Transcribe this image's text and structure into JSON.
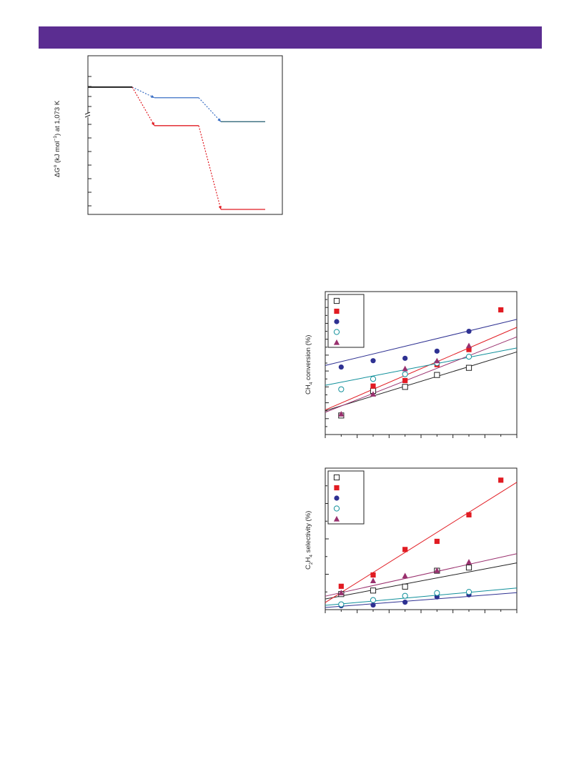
{
  "colors": {
    "header": "#5b2d91",
    "black": "#222222",
    "red": "#e11b22",
    "navy": "#2e3192",
    "blue": "#3a6fc4",
    "teal": "#0f8f9a",
    "plum": "#99306e",
    "dark_teal": "#1e5a6e"
  },
  "chart_data": [
    {
      "type": "line",
      "subtype": "energy-level diagram",
      "ylabel_parts": {
        "delta": "Δ",
        "g": "G",
        "deg": "o",
        "kj": " (kJ mol",
        "exp": "−1",
        "rest": ") at 1,073 K"
      },
      "ylim": [
        0,
        100
      ],
      "axis_break": true,
      "levels": [
        {
          "name": "start",
          "color": "black",
          "x": [
            0,
            2
          ],
          "y": 92
        },
        {
          "name": "upper-intermediate",
          "color": "blue",
          "x": [
            3,
            5
          ],
          "y": 84
        },
        {
          "name": "upper-final",
          "color": "dark_teal",
          "x": [
            6,
            8
          ],
          "y": 66
        },
        {
          "name": "lower-intermediate",
          "color": "red",
          "x": [
            3,
            5
          ],
          "y": 63
        },
        {
          "name": "lower-final",
          "color": "red",
          "x": [
            6,
            8
          ],
          "y": 0
        }
      ],
      "transitions": [
        {
          "from": "start",
          "to": "upper-intermediate",
          "color": "blue"
        },
        {
          "from": "upper-intermediate",
          "to": "upper-final",
          "color": "blue"
        },
        {
          "from": "start",
          "to": "lower-intermediate",
          "color": "red"
        },
        {
          "from": "lower-intermediate",
          "to": "lower-final",
          "color": "red"
        }
      ]
    },
    {
      "type": "scatter",
      "ylabel_parts": {
        "pre": "CH",
        "sub": "4",
        "post": " conversion (%)"
      },
      "xlim": [
        0,
        12
      ],
      "ylim": [
        0,
        18
      ],
      "x": [
        1,
        3,
        5,
        7,
        9,
        11
      ],
      "legend": "top-left",
      "series": [
        {
          "marker": "square-open",
          "color": "black",
          "values": [
            2.4,
            5.5,
            6.0,
            7.5,
            8.4,
            null
          ],
          "fit": [
            3.0,
            10.4
          ]
        },
        {
          "marker": "square-filled",
          "color": "red",
          "values": [
            null,
            6.1,
            6.8,
            8.8,
            10.7,
            15.7
          ],
          "fit": [
            3.1,
            13.5
          ]
        },
        {
          "marker": "circle-filled",
          "color": "navy",
          "values": [
            8.5,
            9.3,
            9.6,
            10.5,
            13.0,
            null
          ],
          "fit": [
            8.7,
            14.5
          ]
        },
        {
          "marker": "circle-open",
          "color": "teal",
          "values": [
            5.7,
            7.0,
            7.6,
            9.0,
            9.8,
            null
          ],
          "fit": [
            6.2,
            10.9
          ]
        },
        {
          "marker": "triangle-filled",
          "color": "plum",
          "values": [
            2.6,
            5.1,
            8.3,
            9.3,
            11.2,
            null
          ],
          "fit": [
            2.8,
            12.3
          ]
        }
      ]
    },
    {
      "type": "scatter",
      "ylabel_parts": {
        "pre": "C",
        "sub1": "2",
        "mid": "H",
        "sub2": "4",
        "post": " selectivity (%)"
      },
      "xlim": [
        0,
        12
      ],
      "ylim": [
        0,
        40
      ],
      "x": [
        1,
        3,
        5,
        7,
        9,
        11
      ],
      "legend": "top-left",
      "series": [
        {
          "marker": "square-open",
          "color": "black",
          "values": [
            4.4,
            5.4,
            6.5,
            11.0,
            11.9,
            null
          ],
          "fit": [
            3.0,
            13.2
          ]
        },
        {
          "marker": "square-filled",
          "color": "red",
          "values": [
            6.6,
            9.8,
            17.0,
            19.3,
            26.8,
            36.6
          ],
          "fit": [
            2.0,
            36.0
          ]
        },
        {
          "marker": "circle-filled",
          "color": "navy",
          "values": [
            1.1,
            1.3,
            2.1,
            3.6,
            4.2,
            null
          ],
          "fit": [
            0.6,
            4.8
          ]
        },
        {
          "marker": "circle-open",
          "color": "teal",
          "values": [
            1.5,
            2.7,
            3.9,
            4.7,
            5.0,
            null
          ],
          "fit": [
            1.2,
            6.1
          ]
        },
        {
          "marker": "triangle-filled",
          "color": "plum",
          "values": [
            4.8,
            8.2,
            9.6,
            11.1,
            13.5,
            null
          ],
          "fit": [
            3.8,
            15.8
          ]
        }
      ]
    }
  ]
}
